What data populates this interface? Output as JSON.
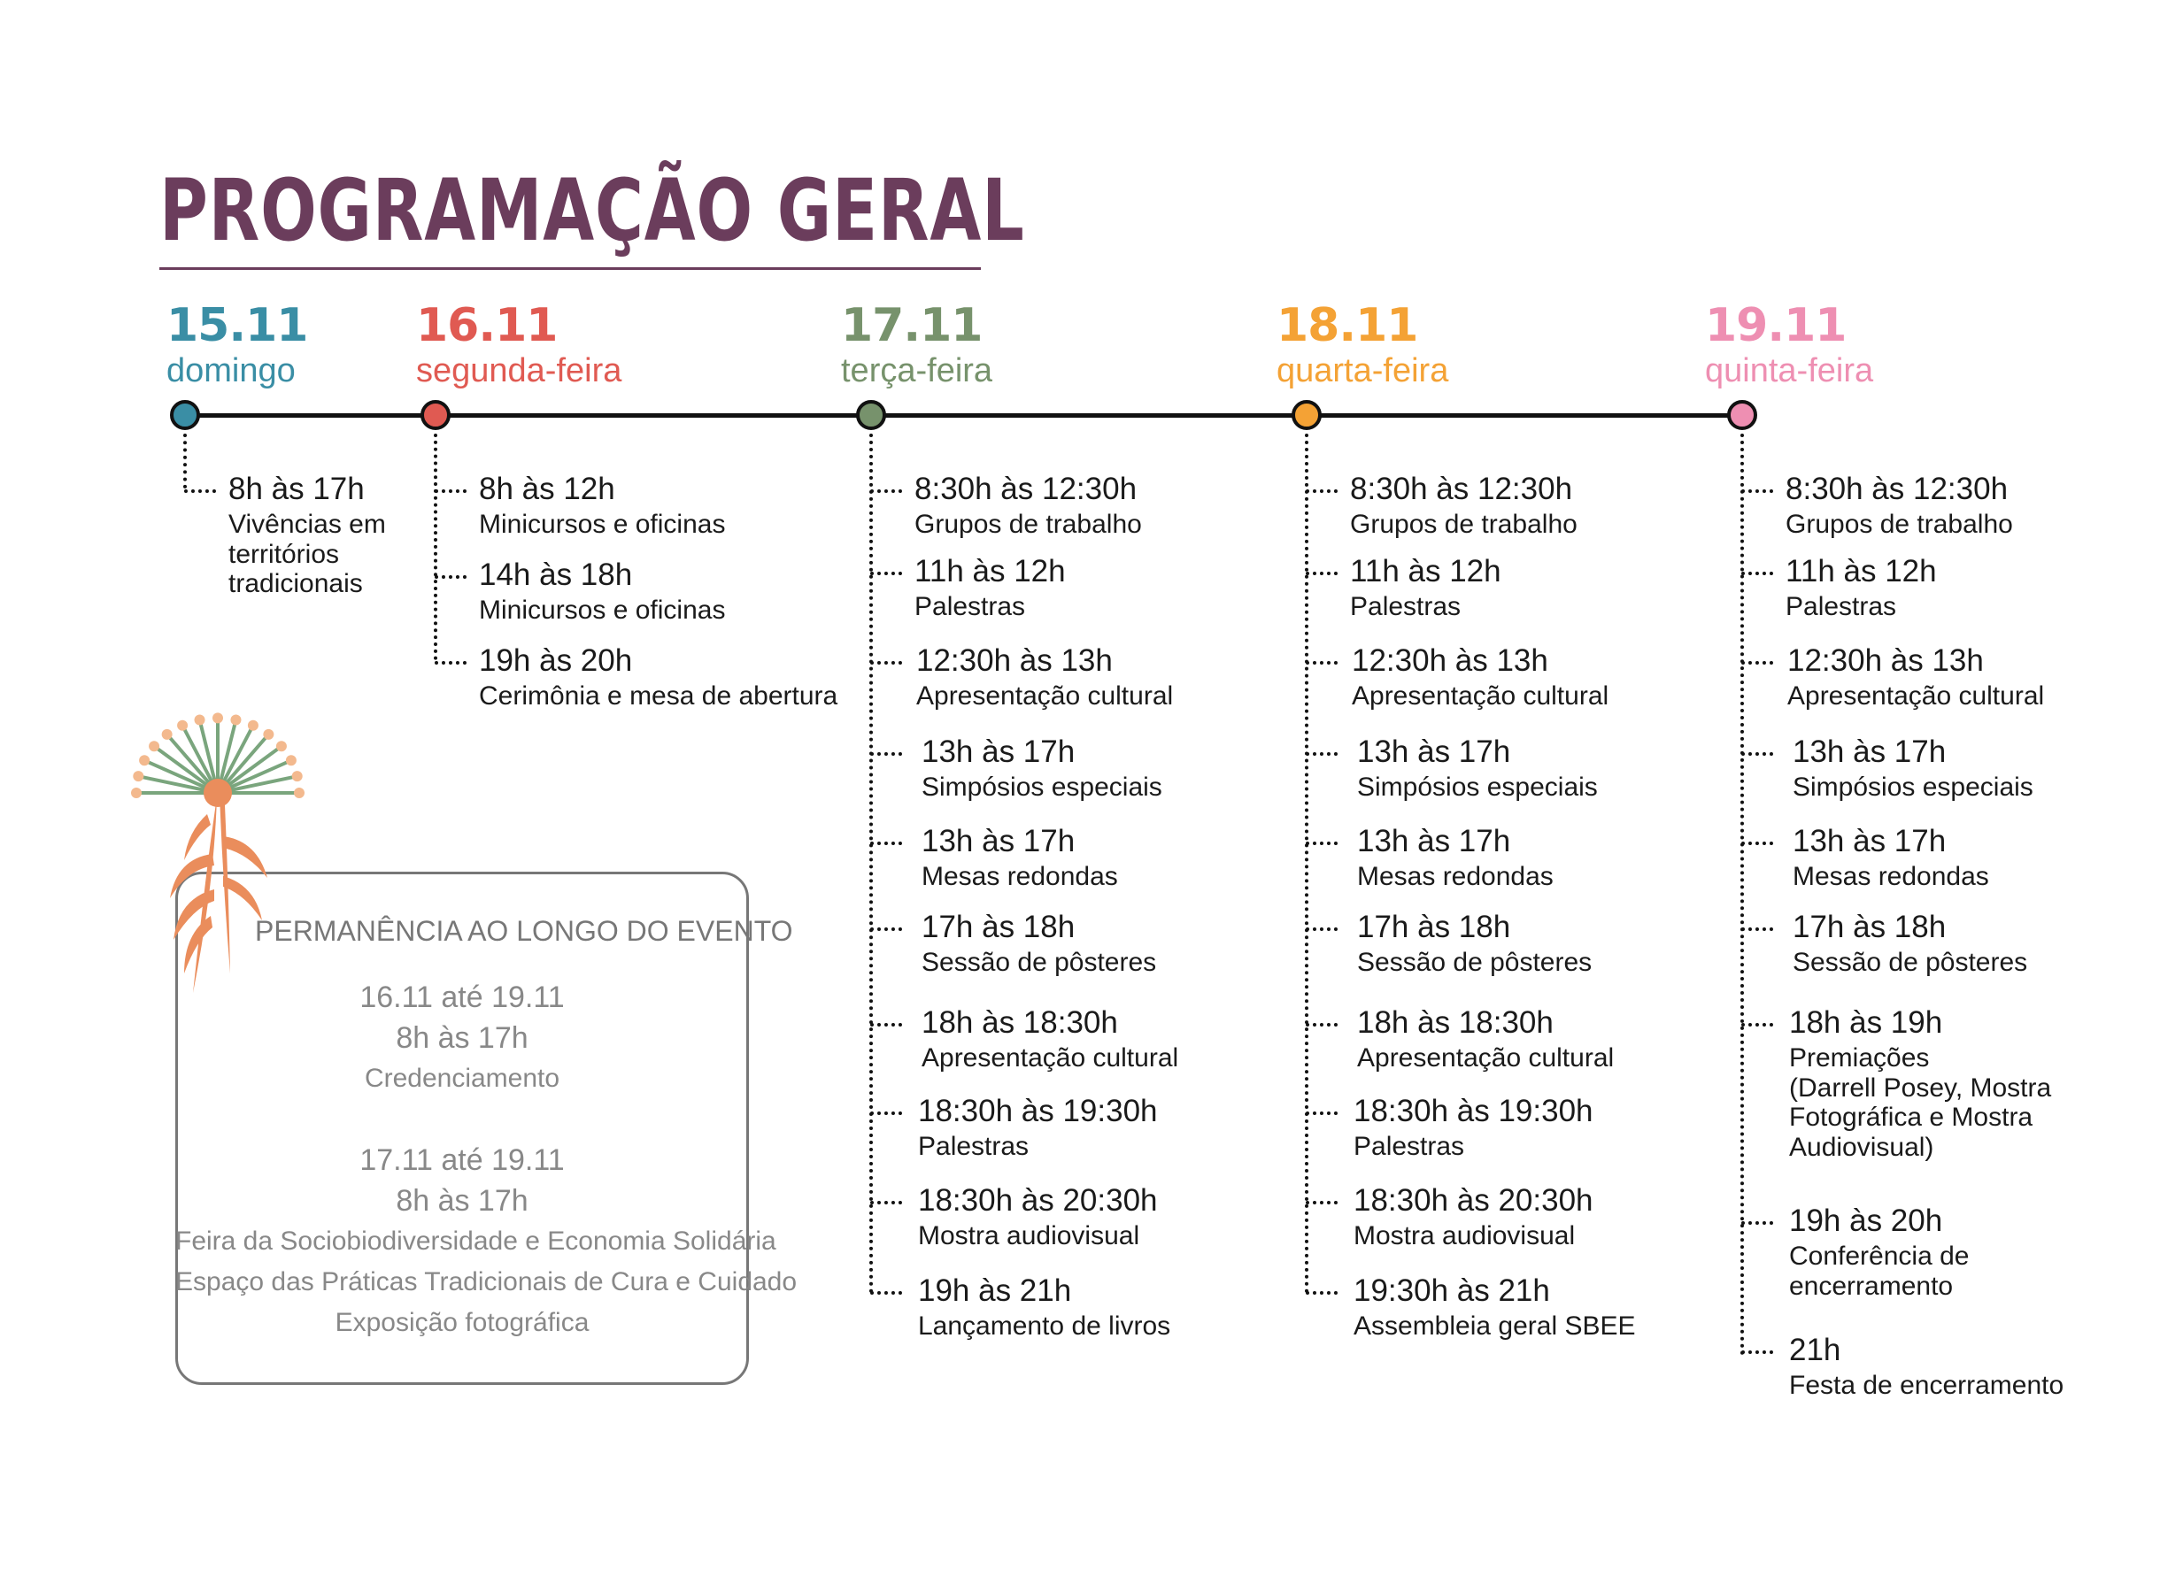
{
  "title": "PROGRAMAÇÃO GERAL",
  "colors": {
    "title": "#6b3d5c",
    "day_15": "#3a8ea5",
    "day_16": "#e05a52",
    "day_17": "#77926c",
    "day_18": "#f4a235",
    "day_19": "#ee8fb2"
  },
  "days": [
    {
      "date": "15.11",
      "weekday": "domingo",
      "events": [
        {
          "time": "8h às 17h",
          "desc": "Vivências em\nterritórios\ntradicionais"
        }
      ]
    },
    {
      "date": "16.11",
      "weekday": "segunda-feira",
      "events": [
        {
          "time": "8h às 12h",
          "desc": "Minicursos e oficinas"
        },
        {
          "time": "14h às 18h",
          "desc": "Minicursos e oficinas"
        },
        {
          "time": "19h às 20h",
          "desc": "Cerimônia  e mesa de abertura"
        }
      ]
    },
    {
      "date": "17.11",
      "weekday": "terça-feira",
      "events": [
        {
          "time": "8:30h às 12:30h",
          "desc": "Grupos de trabalho"
        },
        {
          "time": "11h às 12h",
          "desc": "Palestras"
        },
        {
          "time": "12:30h às 13h",
          "desc": "Apresentação cultural"
        },
        {
          "time": "13h às 17h",
          "desc": "Simpósios especiais"
        },
        {
          "time": "13h às 17h",
          "desc": "Mesas redondas"
        },
        {
          "time": "17h às 18h",
          "desc": "Sessão de pôsteres"
        },
        {
          "time": "18h às 18:30h",
          "desc": "Apresentação cultural"
        },
        {
          "time": "18:30h às 19:30h",
          "desc": "Palestras"
        },
        {
          "time": "18:30h às 20:30h",
          "desc": "Mostra audiovisual"
        },
        {
          "time": "19h às 21h",
          "desc": "Lançamento de livros"
        }
      ]
    },
    {
      "date": "18.11",
      "weekday": "quarta-feira",
      "events": [
        {
          "time": "8:30h às 12:30h",
          "desc": "Grupos de trabalho"
        },
        {
          "time": "11h às 12h",
          "desc": "Palestras"
        },
        {
          "time": "12:30h às 13h",
          "desc": "Apresentação cultural"
        },
        {
          "time": "13h às 17h",
          "desc": "Simpósios especiais"
        },
        {
          "time": "13h às 17h",
          "desc": "Mesas redondas"
        },
        {
          "time": "17h às 18h",
          "desc": "Sessão de pôsteres"
        },
        {
          "time": "18h às 18:30h",
          "desc": "Apresentação cultural"
        },
        {
          "time": "18:30h às 19:30h",
          "desc": "Palestras"
        },
        {
          "time": "18:30h às 20:30h",
          "desc": "Mostra audiovisual"
        },
        {
          "time": "19:30h às 21h",
          "desc": "Assembleia geral SBEE"
        }
      ]
    },
    {
      "date": "19.11",
      "weekday": "quinta-feira",
      "events": [
        {
          "time": "8:30h às 12:30h",
          "desc": "Grupos de trabalho"
        },
        {
          "time": "11h às 12h",
          "desc": "Palestras"
        },
        {
          "time": "12:30h às 13h",
          "desc": "Apresentação cultural"
        },
        {
          "time": "13h às 17h",
          "desc": "Simpósios especiais"
        },
        {
          "time": "13h às 17h",
          "desc": "Mesas redondas"
        },
        {
          "time": "17h às 18h",
          "desc": "Sessão de pôsteres"
        },
        {
          "time": "18h às 19h",
          "desc": "Premiações\n(Darrell Posey, Mostra\nFotográfica e Mostra\nAudiovisual)"
        },
        {
          "time": "19h às 20h",
          "desc": "Conferência de\nencerramento"
        },
        {
          "time": "21h",
          "desc": "Festa de encerramento"
        }
      ]
    }
  ],
  "permanence": {
    "title": "PERMANÊNCIA AO LONGO DO EVENTO",
    "blocks": [
      {
        "dates": "16.11 até 19.11",
        "hours": "8h às 17h",
        "items": [
          "Credenciamento"
        ]
      },
      {
        "dates": "17.11 até 19.11",
        "hours": "8h às 17h",
        "items": [
          "Feira da Sociobiodiversidade e Economia Solidária",
          "Espaço das Práticas Tradicionais de Cura e Cuidado",
          "Exposição fotográfica"
        ]
      }
    ]
  }
}
